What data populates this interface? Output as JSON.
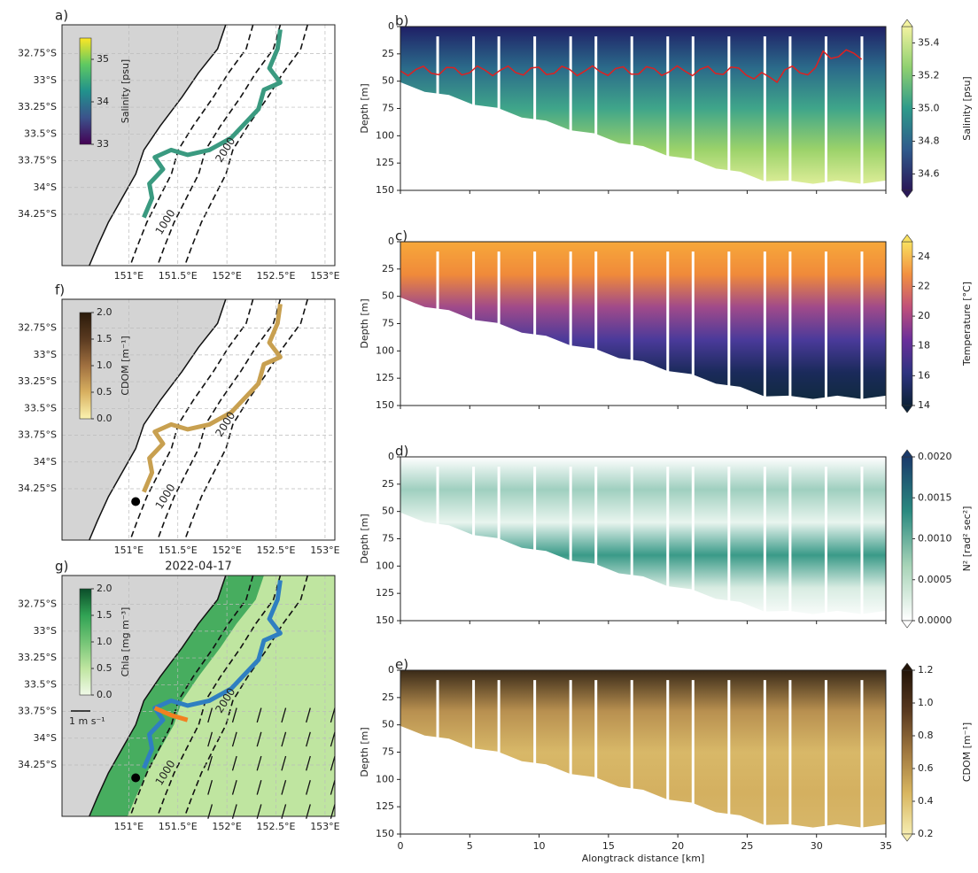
{
  "chart_data": [
    {
      "type": "map",
      "panel_label": "a)",
      "xlim": [
        150.32,
        153.1
      ],
      "ylim": [
        -34.73,
        -32.48
      ],
      "xticks": [
        {
          "value": 151,
          "label": "151°E"
        },
        {
          "value": 151.5,
          "label": "151.5°E"
        },
        {
          "value": 152,
          "label": "152°E"
        },
        {
          "value": 152.5,
          "label": "152.5°E"
        },
        {
          "value": 153,
          "label": "153°E"
        }
      ],
      "yticks": [
        {
          "value": -32.75,
          "label": "32.75°S"
        },
        {
          "value": -33,
          "label": "33°S"
        },
        {
          "value": -33.25,
          "label": "33.25°S"
        },
        {
          "value": -33.5,
          "label": "33.5°S"
        },
        {
          "value": -33.75,
          "label": "33.75°S"
        },
        {
          "value": -34,
          "label": "34°S"
        },
        {
          "value": -34.25,
          "label": "34.25°S"
        }
      ],
      "colorbar_label": "Salinity [psu]",
      "clim": [
        33,
        35.5
      ],
      "cticks": [
        33,
        34,
        35
      ],
      "colors": [
        "#440154",
        "#3b528b",
        "#21918c",
        "#5ec962",
        "#fde725"
      ],
      "track_color": "#3a9a80",
      "contour_labels": [
        "1000",
        "2000"
      ]
    },
    {
      "type": "map",
      "panel_label": "f)",
      "xlim": [
        150.32,
        153.1
      ],
      "ylim": [
        -34.73,
        -32.48
      ],
      "xticks": [
        {
          "value": 151,
          "label": "151°E"
        },
        {
          "value": 151.5,
          "label": "151.5°E"
        },
        {
          "value": 152,
          "label": "152°E"
        },
        {
          "value": 152.5,
          "label": "152.5°E"
        },
        {
          "value": 153,
          "label": "153°E"
        }
      ],
      "yticks": [
        {
          "value": -32.75,
          "label": "32.75°S"
        },
        {
          "value": -33,
          "label": "33°S"
        },
        {
          "value": -33.25,
          "label": "33.25°S"
        },
        {
          "value": -33.5,
          "label": "33.5°S"
        },
        {
          "value": -33.75,
          "label": "33.75°S"
        },
        {
          "value": -34,
          "label": "34°S"
        },
        {
          "value": -34.25,
          "label": "34.25°S"
        }
      ],
      "colorbar_label": "CDOM [m⁻¹]",
      "clim": [
        0,
        2
      ],
      "cticks": [
        {
          "value": 0,
          "label": "0.0"
        },
        0.5,
        {
          "value": 1,
          "label": "1.0"
        },
        1.5,
        {
          "value": 2,
          "label": "2.0"
        }
      ],
      "colors": [
        "#fbf3b0",
        "#d8b060",
        "#a07040",
        "#5a3a20",
        "#2a1a0a"
      ],
      "track_color": "#c8a050",
      "marker_color": "#000000",
      "contour_labels": [
        "1000",
        "2000"
      ]
    },
    {
      "type": "map",
      "panel_label": "g)",
      "title": "2022-04-17",
      "xlim": [
        150.32,
        153.1
      ],
      "ylim": [
        -34.73,
        -32.48
      ],
      "xticks": [
        {
          "value": 151,
          "label": "151°E"
        },
        {
          "value": 151.5,
          "label": "151.5°E"
        },
        {
          "value": 152,
          "label": "152°E"
        },
        {
          "value": 152.5,
          "label": "152.5°E"
        },
        {
          "value": 153,
          "label": "153°E"
        }
      ],
      "yticks": [
        {
          "value": -32.75,
          "label": "32.75°S"
        },
        {
          "value": -33,
          "label": "33°S"
        },
        {
          "value": -33.25,
          "label": "33.25°S"
        },
        {
          "value": -33.5,
          "label": "33.5°S"
        },
        {
          "value": -33.75,
          "label": "33.75°S"
        },
        {
          "value": -34,
          "label": "34°S"
        },
        {
          "value": -34.25,
          "label": "34.25°S"
        }
      ],
      "colorbar_label": "Chla [mg m⁻³]",
      "clim": [
        0,
        2
      ],
      "cticks": [
        {
          "value": 0,
          "label": "0.0"
        },
        0.5,
        {
          "value": 1,
          "label": "1.0"
        },
        1.5,
        {
          "value": 2,
          "label": "2.0"
        }
      ],
      "colors": [
        "#f0f9e8",
        "#bfe5a0",
        "#74c476",
        "#31a354",
        "#0b4d2a"
      ],
      "track_color": "#2f7fc1",
      "highlight_color": "#f28020",
      "marker_color": "#000000",
      "vector_key": "1 m s⁻¹",
      "contour_labels": [
        "1000",
        "2000"
      ]
    },
    {
      "type": "section",
      "panel_label": "b)",
      "ylabel": "Depth [m]",
      "xlim": [
        0,
        35
      ],
      "ylim": [
        150,
        0
      ],
      "xticks_unlabeled": [
        0,
        5,
        10,
        15,
        20,
        25,
        30,
        35
      ],
      "yticks": [
        0,
        25,
        50,
        75,
        100,
        125,
        150
      ],
      "field_colors": [
        "#1f1f66",
        "#2b6a8a",
        "#3fa58a",
        "#9bd26a",
        "#e9f2a0"
      ],
      "colorbar_label": "Salinity [psu]",
      "clim": [
        34.5,
        35.5
      ],
      "cticks": [
        34.6,
        34.8,
        {
          "value": 35,
          "label": "35.0"
        },
        35.2,
        35.4
      ],
      "colors": [
        "#2a1858",
        "#2f5a8c",
        "#2e9a8a",
        "#8fd070",
        "#f2f2a0"
      ],
      "line_color": "#e02020"
    },
    {
      "type": "section",
      "panel_label": "c)",
      "ylabel": "Depth [m]",
      "xlim": [
        0,
        35
      ],
      "ylim": [
        150,
        0
      ],
      "xticks_unlabeled": [
        0,
        5,
        10,
        15,
        20,
        25,
        30,
        35
      ],
      "yticks": [
        0,
        25,
        50,
        75,
        100,
        125,
        150
      ],
      "field_colors": [
        "#f7a83a",
        "#f08a3a",
        "#a04a8a",
        "#4a3a9a",
        "#1a2a5a",
        "#0f2a3a"
      ],
      "colorbar_label": "Temperature [°C]",
      "clim": [
        14,
        25
      ],
      "cticks": [
        14,
        16,
        18,
        20,
        22,
        24
      ],
      "colors": [
        "#0d2238",
        "#2d3380",
        "#6a2f9a",
        "#c0507a",
        "#f29040",
        "#f8e060"
      ]
    },
    {
      "type": "section",
      "panel_label": "d)",
      "ylabel": "Depth [m]",
      "xlim": [
        0,
        35
      ],
      "ylim": [
        150,
        0
      ],
      "xticks_unlabeled": [
        0,
        5,
        10,
        15,
        20,
        25,
        30,
        35
      ],
      "yticks": [
        0,
        25,
        50,
        75,
        100,
        125,
        150
      ],
      "field_colors": [
        "#ffffff",
        "#9fcfbf",
        "#e8f4ee",
        "#3a9a88",
        "#d8ece2",
        "#ffffff"
      ],
      "colorbar_label": "N² [rad² sec²]",
      "clim": [
        0,
        0.002
      ],
      "cticks": [
        {
          "value": 0,
          "label": "0.0000"
        },
        {
          "value": 0.0005,
          "label": "0.0005"
        },
        {
          "value": 0.001,
          "label": "0.0010"
        },
        {
          "value": 0.0015,
          "label": "0.0015"
        },
        {
          "value": 0.002,
          "label": "0.0020"
        }
      ],
      "colors": [
        "#ffffff",
        "#a8d4b8",
        "#2a8a80",
        "#1a3a6a"
      ]
    },
    {
      "type": "section",
      "panel_label": "e)",
      "ylabel": "Depth [m]",
      "xlabel": "Alongtrack distance [km]",
      "xlim": [
        0,
        35
      ],
      "ylim": [
        150,
        0
      ],
      "xticks": [
        0,
        5,
        10,
        15,
        20,
        25,
        30,
        35
      ],
      "yticks": [
        0,
        25,
        50,
        75,
        100,
        125,
        150
      ],
      "field_colors": [
        "#3a2a18",
        "#b89050",
        "#d8b868",
        "#d4b060",
        "#d8b86a"
      ],
      "colorbar_label": "CDOM [m⁻¹]",
      "clim": [
        0.2,
        1.2
      ],
      "cticks": [
        0.2,
        0.4,
        0.6,
        0.8,
        {
          "value": 1,
          "label": "1.0"
        },
        1.2
      ],
      "colors": [
        "#f5ecb0",
        "#d8b660",
        "#a07840",
        "#5a3a20",
        "#221408"
      ]
    }
  ]
}
